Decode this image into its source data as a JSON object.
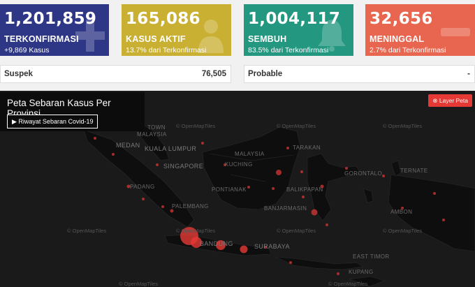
{
  "stats": [
    {
      "value": "1,201,859",
      "label": "TERKONFIRMASI",
      "sub": "+9,869 Kasus",
      "icon": "plus-icon",
      "color": "#2e3785"
    },
    {
      "value": "165,086",
      "label": "KASUS AKTIF",
      "sub": "13.7% dari Terkonfirmasi",
      "icon": "doctor-icon",
      "color": "#c9b033"
    },
    {
      "value": "1,004,117",
      "label": "SEMBUH",
      "sub": "83.5% dari Terkonfirmasi",
      "icon": "bell-icon",
      "color": "#23977f"
    },
    {
      "value": "32,656",
      "label": "MENINGGAL",
      "sub": "2.7% dari Terkonfirmasi",
      "icon": "minus-icon",
      "color": "#e8664f"
    }
  ],
  "suspek": {
    "label": "Suspek",
    "value": "76,505"
  },
  "probable": {
    "label": "Probable",
    "value": "-"
  },
  "map": {
    "title": "Peta Sebaran Kasus Per Provinsi",
    "history_button": "▶ Riwayat Sebaran Covid-19",
    "layer_button": "⊗ Layer Peta",
    "attribution": "© OpenMapTiles",
    "cities": [
      "TOWN",
      "MALAYSIA",
      "MEDAN",
      "KUALA LUMPUR",
      "SINGAPORE",
      "MALAYSIA",
      "KUCHING",
      "TARAKAN",
      "PADANG",
      "PONTIANAK",
      "GORONTALO",
      "TERNATE",
      "BALIKPAPAN",
      "PALEMBANG",
      "AMBON",
      "BANJARMASIN",
      "BANDUNG",
      "SURABAYA",
      "EAST TIMOR",
      "KUPANG"
    ]
  }
}
